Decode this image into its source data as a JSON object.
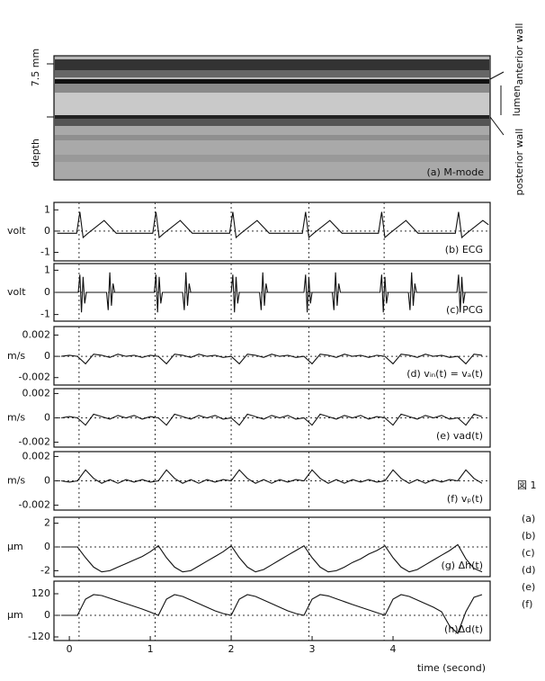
{
  "chart_data": [
    {
      "type": "line",
      "label": "(b) ECG",
      "ylabel": "volt",
      "xlim": [
        -0.19,
        5.2
      ],
      "ylim": [
        -1.4,
        1.35
      ],
      "yticks": [
        1,
        0,
        -1
      ],
      "x": [
        -0.15,
        0.09,
        0.13,
        0.17,
        0.23,
        0.43,
        0.58,
        1.03,
        1.07,
        1.11,
        1.17,
        1.37,
        1.52,
        1.98,
        2.02,
        2.06,
        2.12,
        2.32,
        2.47,
        2.88,
        2.92,
        2.96,
        3.02,
        3.22,
        3.37,
        3.82,
        3.86,
        3.9,
        3.96,
        4.16,
        4.31,
        4.77,
        4.81,
        4.85,
        4.91,
        5.11,
        5.18
      ],
      "series": [
        {
          "color": "#111",
          "values": [
            -0.1,
            -0.1,
            0.9,
            -0.3,
            -0.1,
            0.5,
            -0.1,
            -0.1,
            0.9,
            -0.3,
            -0.1,
            0.5,
            -0.1,
            -0.1,
            0.9,
            -0.3,
            -0.1,
            0.5,
            -0.1,
            -0.1,
            0.9,
            -0.3,
            -0.1,
            0.5,
            -0.1,
            -0.1,
            0.9,
            -0.3,
            -0.1,
            0.5,
            -0.1,
            -0.1,
            0.9,
            -0.3,
            -0.1,
            0.5,
            0.3
          ]
        }
      ]
    },
    {
      "type": "line",
      "label": "(c) PCG",
      "ylabel": "volt",
      "xlim": [
        -0.19,
        5.2
      ],
      "ylim": [
        -1.3,
        1.3
      ],
      "yticks": [
        1,
        0,
        -1
      ],
      "x": [
        -0.15,
        0.11,
        0.13,
        0.15,
        0.17,
        0.19,
        0.21,
        0.46,
        0.48,
        0.5,
        0.52,
        0.54,
        0.56,
        1.05,
        1.07,
        1.09,
        1.11,
        1.13,
        1.15,
        1.4,
        1.42,
        1.44,
        1.46,
        1.48,
        1.5,
        2,
        2.02,
        2.04,
        2.06,
        2.08,
        2.1,
        2.35,
        2.37,
        2.39,
        2.41,
        2.43,
        2.45,
        2.9,
        2.92,
        2.94,
        2.96,
        2.98,
        3,
        3.25,
        3.27,
        3.29,
        3.31,
        3.33,
        3.35,
        3.84,
        3.86,
        3.88,
        3.9,
        3.92,
        3.94,
        4.19,
        4.21,
        4.23,
        4.25,
        4.27,
        4.29,
        4.79,
        4.81,
        4.83,
        4.85,
        4.87,
        4.89,
        5.15
      ],
      "series": [
        {
          "color": "#111",
          "values": [
            0,
            0,
            0.8,
            -0.9,
            0.7,
            -0.5,
            0,
            0,
            -0.8,
            0.9,
            -0.6,
            0.4,
            0,
            0,
            0.8,
            -0.9,
            0.7,
            -0.5,
            0,
            0,
            -0.8,
            0.9,
            -0.6,
            0.4,
            0,
            0,
            0.8,
            -0.9,
            0.7,
            -0.5,
            0,
            0,
            -0.8,
            0.9,
            -0.6,
            0.4,
            0,
            0,
            0.8,
            -0.9,
            0.7,
            -0.5,
            0,
            0,
            -0.8,
            0.9,
            -0.6,
            0.4,
            0,
            0,
            0.8,
            -0.9,
            0.7,
            -0.5,
            0,
            0,
            -0.8,
            0.9,
            -0.6,
            0.4,
            0,
            0,
            0.8,
            -0.9,
            0.7,
            -0.5,
            0,
            0
          ]
        }
      ]
    },
    {
      "type": "line",
      "label": "(d) vᵢₙ(t) = vₐ(t)",
      "ylabel": "m/s",
      "xlim": [
        -0.19,
        5.2
      ],
      "ylim": [
        -0.0027,
        0.0028
      ],
      "yticks": [
        0.002,
        0,
        -0.002
      ],
      "x": [
        -0.1,
        0,
        0.1,
        0.2,
        0.3,
        0.4,
        0.5,
        0.6,
        0.7,
        0.8,
        0.9,
        1,
        1.1,
        1.2,
        1.3,
        1.4,
        1.5,
        1.6,
        1.7,
        1.8,
        1.9,
        2,
        2.1,
        2.2,
        2.3,
        2.4,
        2.5,
        2.6,
        2.7,
        2.8,
        2.9,
        3,
        3.1,
        3.2,
        3.3,
        3.4,
        3.5,
        3.6,
        3.7,
        3.8,
        3.9,
        4,
        4.1,
        4.2,
        4.3,
        4.4,
        4.5,
        4.6,
        4.7,
        4.8,
        4.9,
        5,
        5.1
      ],
      "series": [
        {
          "color": "#111",
          "values": [
            0,
            0.0001,
            0,
            -0.0007,
            0.0002,
            0.0001,
            -0.0001,
            0.0002,
            0,
            0.0001,
            -0.0001,
            0.0001,
            0,
            -0.0007,
            0.0002,
            0.0001,
            -0.0001,
            0.0002,
            0,
            0.0001,
            -0.0001,
            0,
            -0.0007,
            0.0002,
            0.0001,
            -0.0001,
            0.0002,
            0,
            0.0001,
            -0.0001,
            0,
            -0.0007,
            0.0002,
            0.0001,
            -0.0001,
            0.0002,
            0,
            0.0001,
            -0.0001,
            0.0001,
            0,
            -0.0007,
            0.0002,
            0.0001,
            -0.0001,
            0.0002,
            0,
            0.0001,
            -0.0001,
            0,
            -0.0007,
            0.0002,
            0.0001
          ]
        }
      ]
    },
    {
      "type": "line",
      "label": "(e) vad(t)",
      "ylabel": "m/s",
      "xlim": [
        -0.19,
        5.2
      ],
      "ylim": [
        -0.0024,
        0.0024
      ],
      "yticks": [
        0.002,
        0,
        -0.002
      ],
      "x": [
        -0.1,
        0,
        0.1,
        0.2,
        0.3,
        0.4,
        0.5,
        0.6,
        0.7,
        0.8,
        0.9,
        1,
        1.1,
        1.2,
        1.3,
        1.4,
        1.5,
        1.6,
        1.7,
        1.8,
        1.9,
        2,
        2.1,
        2.2,
        2.3,
        2.4,
        2.5,
        2.6,
        2.7,
        2.8,
        2.9,
        3,
        3.1,
        3.2,
        3.3,
        3.4,
        3.5,
        3.6,
        3.7,
        3.8,
        3.9,
        4,
        4.1,
        4.2,
        4.3,
        4.4,
        4.5,
        4.6,
        4.7,
        4.8,
        4.9,
        5,
        5.1
      ],
      "series": [
        {
          "color": "#111",
          "values": [
            0,
            0.0001,
            0,
            -0.0006,
            0.0003,
            0.0001,
            -0.0001,
            0.0002,
            0,
            0.0002,
            -0.0001,
            0.0001,
            0,
            -0.0006,
            0.0003,
            0.0001,
            -0.0001,
            0.0002,
            0,
            0.0002,
            -0.0001,
            0,
            -0.0006,
            0.0003,
            0.0001,
            -0.0001,
            0.0002,
            0,
            0.0002,
            -0.0001,
            0,
            -0.0006,
            0.0003,
            0.0001,
            -0.0001,
            0.0002,
            0,
            0.0002,
            -0.0001,
            0.0001,
            0,
            -0.0006,
            0.0003,
            0.0001,
            -0.0001,
            0.0002,
            0,
            0.0002,
            -0.0001,
            0,
            -0.0006,
            0.0003,
            0.0001
          ]
        }
      ]
    },
    {
      "type": "line",
      "label": "(f) vₚ(t)",
      "ylabel": "m/s",
      "xlim": [
        -0.19,
        5.2
      ],
      "ylim": [
        -0.0024,
        0.0024
      ],
      "yticks": [
        0.002,
        0,
        -0.002
      ],
      "x": [
        -0.1,
        0,
        0.1,
        0.2,
        0.3,
        0.4,
        0.5,
        0.6,
        0.7,
        0.8,
        0.9,
        1,
        1.1,
        1.2,
        1.3,
        1.4,
        1.5,
        1.6,
        1.7,
        1.8,
        1.9,
        2,
        2.1,
        2.2,
        2.3,
        2.4,
        2.5,
        2.6,
        2.7,
        2.8,
        2.9,
        3,
        3.1,
        3.2,
        3.3,
        3.4,
        3.5,
        3.6,
        3.7,
        3.8,
        3.9,
        4,
        4.1,
        4.2,
        4.3,
        4.4,
        4.5,
        4.6,
        4.7,
        4.8,
        4.9,
        5,
        5.1
      ],
      "series": [
        {
          "color": "#111",
          "values": [
            0,
            -0.0001,
            0,
            0.0009,
            0.0002,
            -0.0002,
            0.0001,
            -0.0002,
            0.0001,
            -0.0001,
            0.0001,
            -0.0001,
            0,
            0.0009,
            0.0002,
            -0.0002,
            0.0001,
            -0.0002,
            0.0001,
            -0.0001,
            0.0001,
            0,
            0.0009,
            0.0002,
            -0.0002,
            0.0001,
            -0.0002,
            0.0001,
            -0.0001,
            0.0001,
            0,
            0.0009,
            0.0002,
            -0.0002,
            0.0001,
            -0.0002,
            0.0001,
            -0.0001,
            0.0001,
            -0.0001,
            0,
            0.0009,
            0.0002,
            -0.0002,
            0.0001,
            -0.0002,
            0.0001,
            -0.0001,
            0.0001,
            0,
            0.0009,
            0.0002,
            -0.0002
          ]
        }
      ]
    },
    {
      "type": "line",
      "label": "(g) Δh(t)",
      "ylabel": "μm",
      "xlim": [
        -0.19,
        5.2
      ],
      "ylim": [
        -2.5,
        2.5
      ],
      "yticks": [
        2,
        0,
        -2
      ],
      "x": [
        -0.1,
        0,
        0.1,
        0.2,
        0.3,
        0.4,
        0.5,
        0.6,
        0.7,
        0.8,
        0.9,
        1,
        1.1,
        1.2,
        1.3,
        1.4,
        1.5,
        1.6,
        1.7,
        1.8,
        1.9,
        2,
        2.1,
        2.2,
        2.3,
        2.4,
        2.5,
        2.6,
        2.7,
        2.8,
        2.9,
        3,
        3.1,
        3.2,
        3.3,
        3.4,
        3.5,
        3.6,
        3.7,
        3.8,
        3.9,
        4,
        4.1,
        4.2,
        4.3,
        4.4,
        4.5,
        4.6,
        4.7,
        4.8,
        4.9,
        5,
        5.1
      ],
      "series": [
        {
          "color": "#111",
          "values": [
            0,
            0,
            0,
            -0.9,
            -1.7,
            -2.1,
            -2.0,
            -1.7,
            -1.4,
            -1.1,
            -0.8,
            -0.4,
            0.1,
            -0.9,
            -1.7,
            -2.1,
            -2.0,
            -1.6,
            -1.2,
            -0.8,
            -0.4,
            0.1,
            -0.9,
            -1.7,
            -2.1,
            -1.9,
            -1.5,
            -1.1,
            -0.7,
            -0.3,
            0.1,
            -0.9,
            -1.7,
            -2.1,
            -2.0,
            -1.7,
            -1.3,
            -1.0,
            -0.6,
            -0.3,
            0.1,
            -0.9,
            -1.7,
            -2.1,
            -1.9,
            -1.5,
            -1.1,
            -0.7,
            -0.3,
            0.2,
            -1.0,
            -1.8,
            -2.1
          ]
        }
      ]
    },
    {
      "type": "line",
      "label": "(h)Δd(t)",
      "ylabel": "μm",
      "xlim": [
        -0.19,
        5.2
      ],
      "ylim": [
        -140,
        190
      ],
      "yticks": [
        120,
        0,
        -120
      ],
      "xticks": [
        0,
        1,
        2,
        3,
        4
      ],
      "xlabel": "time (second)",
      "x": [
        -0.1,
        0,
        0.1,
        0.2,
        0.3,
        0.4,
        0.5,
        0.6,
        0.7,
        0.8,
        0.9,
        1,
        1.1,
        1.2,
        1.3,
        1.4,
        1.5,
        1.6,
        1.7,
        1.8,
        1.9,
        2,
        2.1,
        2.2,
        2.3,
        2.4,
        2.5,
        2.6,
        2.7,
        2.8,
        2.9,
        3,
        3.1,
        3.2,
        3.3,
        3.4,
        3.5,
        3.6,
        3.7,
        3.8,
        3.9,
        4,
        4.1,
        4.2,
        4.3,
        4.4,
        4.5,
        4.6,
        4.7,
        4.8,
        4.9,
        5,
        5.1
      ],
      "series": [
        {
          "color": "#111",
          "values": [
            0,
            0,
            0,
            90,
            115,
            110,
            95,
            80,
            65,
            50,
            35,
            18,
            0,
            90,
            115,
            105,
            85,
            65,
            45,
            25,
            10,
            0,
            90,
            115,
            105,
            85,
            65,
            45,
            25,
            10,
            0,
            90,
            115,
            108,
            92,
            76,
            60,
            45,
            30,
            15,
            0,
            90,
            115,
            105,
            85,
            65,
            45,
            20,
            -60,
            -100,
            20,
            100,
            115
          ]
        }
      ]
    }
  ],
  "beat_markers": [
    0.12,
    1.06,
    2.0,
    2.96,
    3.89
  ],
  "mmode": {
    "label": "(a) M-mode",
    "scale": "7.5 mm",
    "depth": "depth",
    "anterior": "anterior wall",
    "lumen": "lumen",
    "posterior": "posterior wall"
  },
  "side_text": [
    "図 1",
    "(a)",
    "(b)",
    "(c)",
    "(d)",
    "(e)",
    "(f)"
  ]
}
